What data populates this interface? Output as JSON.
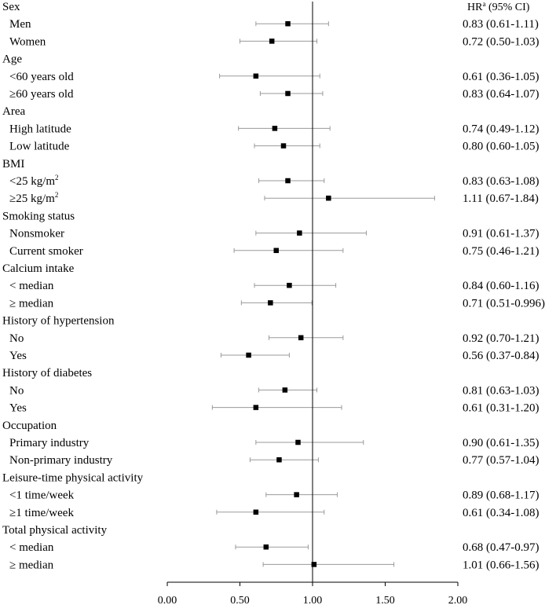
{
  "chart_data": {
    "type": "forest",
    "header": {
      "hr": "HR",
      "hr_superscript": "a",
      "ci": " (95% CI)"
    },
    "xlim": [
      0,
      2
    ],
    "xticks": [
      "0.00",
      "0.50",
      "1.00",
      "1.50",
      "2.00"
    ],
    "reference_line": 1.0,
    "rows": [
      {
        "kind": "group",
        "label": "Sex"
      },
      {
        "kind": "item",
        "label": "Men",
        "hr": 0.83,
        "lo": 0.61,
        "hi": 1.11,
        "text": "0.83 (0.61-1.11)"
      },
      {
        "kind": "item",
        "label": "Women",
        "hr": 0.72,
        "lo": 0.5,
        "hi": 1.03,
        "text": "0.72 (0.50-1.03)"
      },
      {
        "kind": "group",
        "label": "Age"
      },
      {
        "kind": "item",
        "label": "<60 years old",
        "hr": 0.61,
        "lo": 0.36,
        "hi": 1.05,
        "text": "0.61 (0.36-1.05)"
      },
      {
        "kind": "item",
        "label": "≥60 years old",
        "hr": 0.83,
        "lo": 0.64,
        "hi": 1.07,
        "text": "0.83 (0.64-1.07)"
      },
      {
        "kind": "group",
        "label": "Area"
      },
      {
        "kind": "item",
        "label": "High latitude",
        "hr": 0.74,
        "lo": 0.49,
        "hi": 1.12,
        "text": "0.74 (0.49-1.12)"
      },
      {
        "kind": "item",
        "label": "Low latitude",
        "hr": 0.8,
        "lo": 0.6,
        "hi": 1.05,
        "text": "0.80 (0.60-1.05)"
      },
      {
        "kind": "group",
        "label": "BMI"
      },
      {
        "kind": "item",
        "label": "<25 kg/m",
        "label_sup": "2",
        "hr": 0.83,
        "lo": 0.63,
        "hi": 1.08,
        "text": "0.83 (0.63-1.08)"
      },
      {
        "kind": "item",
        "label": "≥25 kg/m",
        "label_sup": "2",
        "hr": 1.11,
        "lo": 0.67,
        "hi": 1.84,
        "text": "1.11 (0.67-1.84)"
      },
      {
        "kind": "group",
        "label": "Smoking status"
      },
      {
        "kind": "item",
        "label": "Nonsmoker",
        "hr": 0.91,
        "lo": 0.61,
        "hi": 1.37,
        "text": "0.91 (0.61-1.37)"
      },
      {
        "kind": "item",
        "label": "Current smoker",
        "hr": 0.75,
        "lo": 0.46,
        "hi": 1.21,
        "text": "0.75 (0.46-1.21)"
      },
      {
        "kind": "group",
        "label": "Calcium intake"
      },
      {
        "kind": "item",
        "label": "< median",
        "hr": 0.84,
        "lo": 0.6,
        "hi": 1.16,
        "text": "0.84 (0.60-1.16)"
      },
      {
        "kind": "item",
        "label": "≥ median",
        "hr": 0.71,
        "lo": 0.51,
        "hi": 0.996,
        "text": "0.71 (0.51-0.996)"
      },
      {
        "kind": "group",
        "label": "History of hypertension"
      },
      {
        "kind": "item",
        "label": "No",
        "hr": 0.92,
        "lo": 0.7,
        "hi": 1.21,
        "text": "0.92 (0.70-1.21)"
      },
      {
        "kind": "item",
        "label": "Yes",
        "hr": 0.56,
        "lo": 0.37,
        "hi": 0.84,
        "text": "0.56 (0.37-0.84)"
      },
      {
        "kind": "group",
        "label": "History of diabetes"
      },
      {
        "kind": "item",
        "label": "No",
        "hr": 0.81,
        "lo": 0.63,
        "hi": 1.03,
        "text": "0.81 (0.63-1.03)"
      },
      {
        "kind": "item",
        "label": "Yes",
        "hr": 0.61,
        "lo": 0.31,
        "hi": 1.2,
        "text": "0.61 (0.31-1.20)"
      },
      {
        "kind": "group",
        "label": "Occupation"
      },
      {
        "kind": "item",
        "label": "Primary industry",
        "hr": 0.9,
        "lo": 0.61,
        "hi": 1.35,
        "text": "0.90 (0.61-1.35)"
      },
      {
        "kind": "item",
        "label": "Non-primary industry",
        "hr": 0.77,
        "lo": 0.57,
        "hi": 1.04,
        "text": "0.77 (0.57-1.04)"
      },
      {
        "kind": "group",
        "label": "Leisure-time physical activity"
      },
      {
        "kind": "item",
        "label": "<1 time/week",
        "hr": 0.89,
        "lo": 0.68,
        "hi": 1.17,
        "text": "0.89 (0.68-1.17)"
      },
      {
        "kind": "item",
        "label": "≥1 time/week",
        "hr": 0.61,
        "lo": 0.34,
        "hi": 1.08,
        "text": "0.61 (0.34-1.08)"
      },
      {
        "kind": "group",
        "label": "Total physical activity"
      },
      {
        "kind": "item",
        "label": "< median",
        "hr": 0.68,
        "lo": 0.47,
        "hi": 0.97,
        "text": "0.68 (0.47-0.97)"
      },
      {
        "kind": "item",
        "label": "≥ median",
        "hr": 1.01,
        "lo": 0.66,
        "hi": 1.56,
        "text": "1.01 (0.66-1.56)"
      }
    ]
  }
}
